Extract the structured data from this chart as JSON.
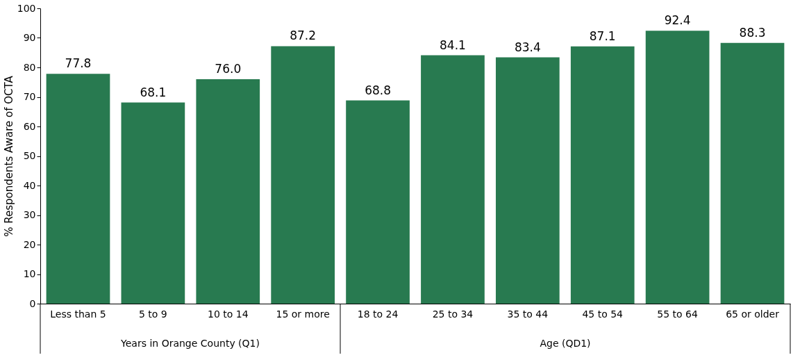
{
  "chart_data": {
    "type": "bar",
    "ylabel": "% Respondents Aware of OCTA",
    "categories": [
      "Less than 5",
      "5 to 9",
      "10 to 14",
      "15 or more",
      "18 to 24",
      "25 to 34",
      "35 to 44",
      "45 to 54",
      "55 to 64",
      "65 or older"
    ],
    "values": [
      77.8,
      68.1,
      76.0,
      87.2,
      68.8,
      84.1,
      83.4,
      87.1,
      92.4,
      88.3
    ],
    "color": "#287a50",
    "ylim": [
      0,
      100
    ],
    "yticks": [
      0,
      10,
      20,
      30,
      40,
      50,
      60,
      70,
      80,
      90,
      100
    ],
    "grid": false,
    "value_labels": [
      "77.8",
      "68.1",
      "76.0",
      "87.2",
      "68.8",
      "84.1",
      "83.4",
      "87.1",
      "92.4",
      "88.3"
    ],
    "annotations": [
      "Years in Orange County (Q1)",
      "Age (QD1)"
    ]
  }
}
